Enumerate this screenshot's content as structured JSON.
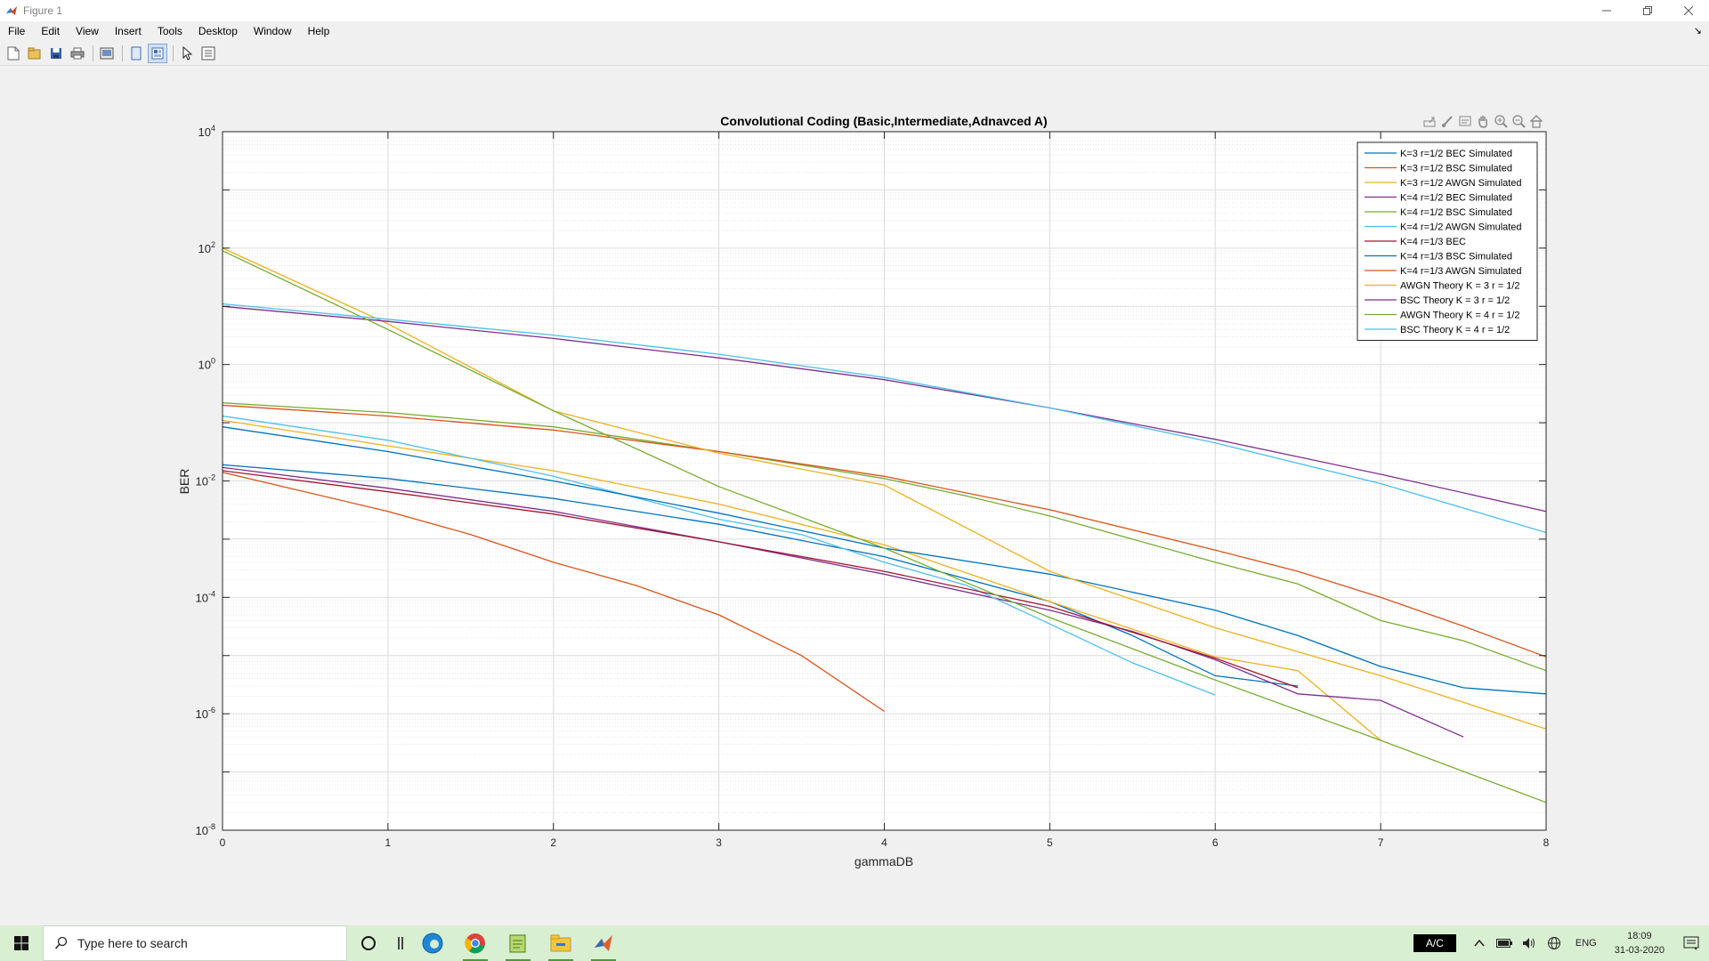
{
  "window": {
    "title": "Figure 1"
  },
  "menu": {
    "items": [
      "File",
      "Edit",
      "View",
      "Insert",
      "Tools",
      "Desktop",
      "Window",
      "Help"
    ]
  },
  "toolbar": {
    "icons": [
      "new-figure-icon",
      "open-file-icon",
      "save-icon",
      "print-icon",
      "link-plot-icon",
      "hide-plot-tools-icon",
      "show-plot-tools-icon",
      "edit-plot-icon",
      "property-inspector-icon"
    ]
  },
  "axes_toolbar": {
    "icons": [
      "export-icon",
      "brush-icon",
      "data-tips-icon",
      "pan-icon",
      "zoom-in-icon",
      "zoom-out-icon",
      "home-icon"
    ]
  },
  "chart_data": {
    "type": "line",
    "title": "Convolutional Coding (Basic,Intermediate,Adnavced A)",
    "xlabel": "gammaDB",
    "ylabel": "BER",
    "xlim": [
      0,
      8
    ],
    "ylim": [
      1e-08,
      10000.0
    ],
    "yscale": "log",
    "grid": true,
    "minor_grid": true,
    "legend_position": "top-right",
    "x_ticks": [
      "0",
      "1",
      "2",
      "3",
      "4",
      "5",
      "6",
      "7",
      "8"
    ],
    "y_ticks": [
      {
        "base": "10",
        "exp": "-8"
      },
      {
        "base": "10",
        "exp": "-6"
      },
      {
        "base": "10",
        "exp": "-4"
      },
      {
        "base": "10",
        "exp": "-2"
      },
      {
        "base": "10",
        "exp": "0"
      },
      {
        "base": "10",
        "exp": "2"
      },
      {
        "base": "10",
        "exp": "4"
      }
    ],
    "series": [
      {
        "name": "K=3 r=1/2 BEC Simulated",
        "color": "#0072bd",
        "x": [
          0,
          1,
          2,
          3,
          4,
          5,
          5.5,
          6,
          6.5
        ],
        "y": [
          0.019,
          0.011,
          0.005,
          0.0018,
          0.0005,
          8.5e-05,
          2.2e-05,
          4.5e-06,
          3e-06
        ]
      },
      {
        "name": "K=3 r=1/2 BSC Simulated",
        "color": "#d95319",
        "x": [
          0,
          1,
          1.5,
          2,
          2.5,
          3,
          3.5,
          4
        ],
        "y": [
          0.014,
          0.003,
          0.0012,
          0.0004,
          0.00016,
          5e-05,
          1e-05,
          1.1e-06
        ]
      },
      {
        "name": "K=3 r=1/2 AWGN Simulated",
        "color": "#edb120",
        "x": [
          0,
          1,
          2,
          3,
          4,
          5,
          6,
          6.5,
          7
        ],
        "y": [
          0.11,
          0.04,
          0.015,
          0.004,
          0.0008,
          8.5e-05,
          9.5e-06,
          5.5e-06,
          3.5e-07
        ]
      },
      {
        "name": "K=4 r=1/2 BEC Simulated",
        "color": "#7e2f8e",
        "x": [
          0,
          1,
          2,
          3,
          4,
          5,
          5.5,
          6,
          6.5,
          7,
          7.5
        ],
        "y": [
          0.017,
          0.0075,
          0.003,
          0.0009,
          0.00025,
          6e-05,
          2.6e-05,
          8.5e-06,
          2.2e-06,
          1.7e-06,
          4e-07
        ]
      },
      {
        "name": "K=4 r=1/2 BSC Simulated",
        "color": "#77ac30",
        "x": [
          0,
          0.5,
          1,
          2,
          3,
          4,
          4.5,
          5,
          6,
          6.5,
          7,
          7.5,
          8
        ],
        "y": [
          0.22,
          0.18,
          0.15,
          0.085,
          0.032,
          0.011,
          0.0055,
          0.0025,
          0.0004,
          0.00017,
          4e-05,
          1.8e-05,
          5.5e-06
        ]
      },
      {
        "name": "K=4 r=1/2 AWGN Simulated",
        "color": "#4dbeee",
        "x": [
          0,
          1,
          2,
          3,
          3.5,
          4,
          4.5,
          5,
          5.5,
          6
        ],
        "y": [
          0.13,
          0.05,
          0.012,
          0.0022,
          0.0012,
          0.0004,
          0.00016,
          3.5e-05,
          7.5e-06,
          2.1e-06
        ]
      },
      {
        "name": "K=4 r=1/3 BEC",
        "color": "#a2142f",
        "x": [
          0,
          1,
          2,
          3,
          4,
          5,
          6,
          6.5
        ],
        "y": [
          0.015,
          0.0065,
          0.0027,
          0.0009,
          0.00028,
          7e-05,
          9e-06,
          2.8e-06
        ]
      },
      {
        "name": "K=4 r=1/3 BSC Simulated",
        "color": "#0072bd",
        "x": [
          0,
          1,
          2,
          3,
          4,
          5,
          6,
          6.5,
          7,
          7.5,
          8
        ],
        "y": [
          0.085,
          0.032,
          0.01,
          0.0028,
          0.0007,
          0.00025,
          6e-05,
          2.2e-05,
          6.5e-06,
          2.8e-06,
          2.2e-06
        ]
      },
      {
        "name": "K=4 r=1/3 AWGN Simulated",
        "color": "#d95319",
        "x": [
          0,
          1,
          2,
          3,
          4,
          5,
          6,
          6.5,
          7,
          7.5,
          8
        ],
        "y": [
          0.2,
          0.13,
          0.075,
          0.032,
          0.012,
          0.0032,
          0.00065,
          0.00028,
          0.0001,
          3.2e-05,
          9.5e-06
        ]
      },
      {
        "name": "AWGN Theory K = 3 r = 1/2",
        "color": "#edb120",
        "x": [
          0,
          1,
          2,
          3,
          4,
          5,
          6,
          7,
          8
        ],
        "y": [
          100,
          5,
          0.16,
          0.03,
          0.0085,
          0.00028,
          3e-05,
          4.5e-06,
          5.5e-07
        ]
      },
      {
        "name": "BSC Theory K = 3 r = 1/2",
        "color": "#7e2f8e",
        "x": [
          0,
          1,
          2,
          3,
          4,
          5,
          6,
          7,
          8
        ],
        "y": [
          10,
          5.5,
          2.8,
          1.3,
          0.55,
          0.18,
          0.052,
          0.013,
          0.003
        ]
      },
      {
        "name": "AWGN Theory K = 4 r = 1/2",
        "color": "#77ac30",
        "x": [
          0,
          1,
          2,
          3,
          4,
          5,
          6,
          7,
          8
        ],
        "y": [
          90,
          4,
          0.16,
          0.008,
          0.0007,
          4.5e-05,
          3.8e-06,
          3.5e-07,
          3e-08
        ]
      },
      {
        "name": "BSC Theory K = 4 r = 1/2",
        "color": "#4dbeee",
        "x": [
          0,
          1,
          2,
          3,
          4,
          5,
          6,
          7,
          8
        ],
        "y": [
          11,
          6,
          3.2,
          1.5,
          0.6,
          0.18,
          0.045,
          0.009,
          0.0013
        ]
      }
    ]
  },
  "taskbar": {
    "search_placeholder": "Type here to search",
    "ac_label": "A/C",
    "language": "ENG",
    "time": "18:09",
    "date": "31-03-2020"
  }
}
